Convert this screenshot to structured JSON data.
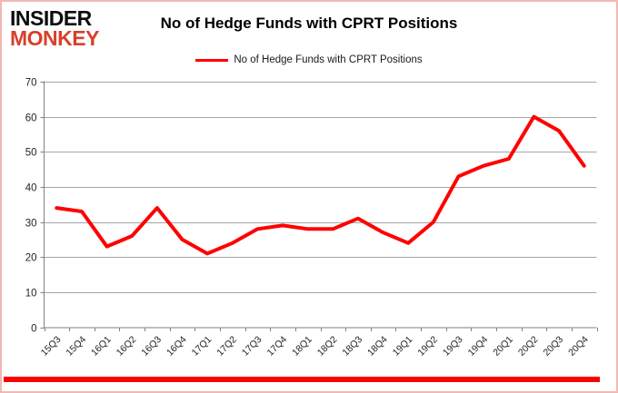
{
  "logo": {
    "line1": "INSIDER",
    "line2": "MONKEY"
  },
  "title": "No of Hedge Funds with CPRT Positions",
  "legend": {
    "label": "No of Hedge Funds with CPRT Positions",
    "swatch_color": "#ff0000"
  },
  "colors": {
    "line": "#ff0000",
    "grid": "#a6a6a6",
    "axis": "#808080",
    "tick_label": "#262626",
    "logo_insider": "#0d0d0d",
    "logo_monkey": "#d8402b",
    "frame_border": "#f3b7b1",
    "bottom_bar": "#fe0000"
  },
  "chart_data": {
    "type": "line",
    "title": "No of Hedge Funds with CPRT Positions",
    "series_name": "No of Hedge Funds with CPRT Positions",
    "categories": [
      "15Q3",
      "15Q4",
      "16Q1",
      "16Q2",
      "16Q3",
      "16Q4",
      "17Q1",
      "17Q2",
      "17Q3",
      "17Q4",
      "18Q1",
      "18Q2",
      "18Q3",
      "18Q4",
      "19Q1",
      "19Q2",
      "19Q3",
      "19Q4",
      "20Q1",
      "20Q2",
      "20Q3",
      "20Q4"
    ],
    "values": [
      34,
      33,
      23,
      26,
      34,
      25,
      21,
      24,
      28,
      29,
      28,
      28,
      31,
      27,
      24,
      30,
      43,
      46,
      48,
      60,
      56,
      46
    ],
    "xlabel": "",
    "ylabel": "",
    "ylim": [
      0,
      70
    ],
    "ytick_step": 10,
    "grid": true,
    "legend_position": "top",
    "line_width": 4
  }
}
